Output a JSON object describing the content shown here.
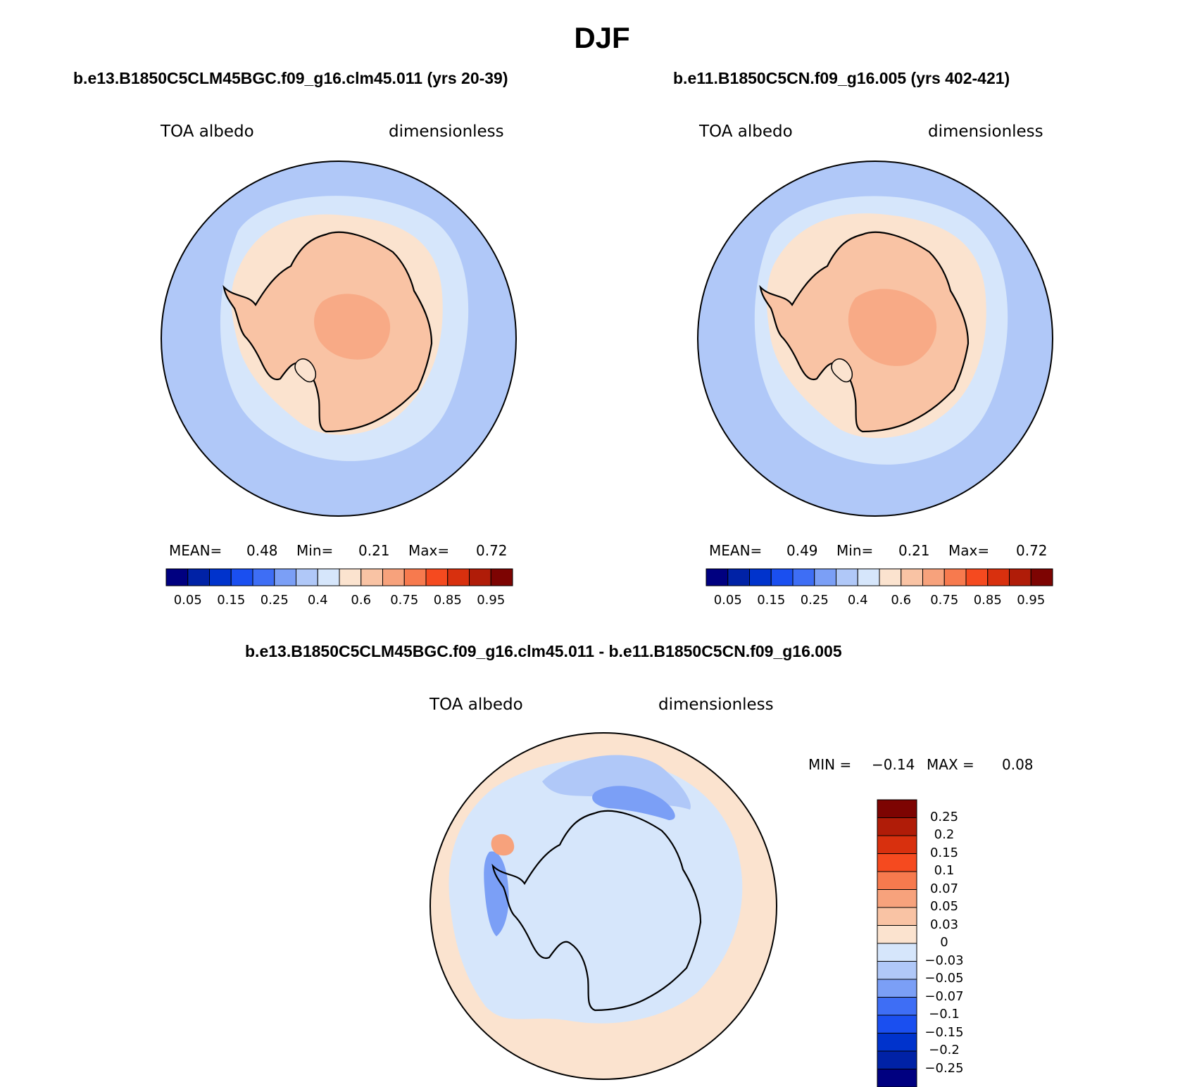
{
  "title": "DJF",
  "panels": [
    {
      "run_title": "b.e13.B1850C5CLM45BGC.f09_g16.clm45.011 (yrs 20-39)",
      "variable": "TOA albedo",
      "units": "dimensionless",
      "stats": {
        "mean_label": "MEAN=",
        "mean": "0.48",
        "min_label": "Min=",
        "min": "0.21",
        "max_label": "Max=",
        "max": "0.72"
      }
    },
    {
      "run_title": "b.e11.B1850C5CN.f09_g16.005 (yrs 402-421)",
      "variable": "TOA albedo",
      "units": "dimensionless",
      "stats": {
        "mean_label": "MEAN=",
        "mean": "0.49",
        "min_label": "Min=",
        "min": "0.21",
        "max_label": "Max=",
        "max": "0.72"
      }
    }
  ],
  "abs_colorbar": {
    "colors": [
      "#000080",
      "#0022a6",
      "#0033cc",
      "#1a4ff0",
      "#3e6ef5",
      "#7b9ff6",
      "#b0c8f8",
      "#d6e6fb",
      "#fbe3cf",
      "#f9c3a4",
      "#f7a27c",
      "#f77a4e",
      "#f54a1f",
      "#d8300e",
      "#b01c08",
      "#7d0402"
    ],
    "labels": [
      "0.05",
      "0.15",
      "0.25",
      "0.4",
      "0.6",
      "0.75",
      "0.85",
      "0.95"
    ]
  },
  "diff_panel": {
    "title": "b.e13.B1850C5CLM45BGC.f09_g16.clm45.011 - b.e11.B1850C5CN.f09_g16.005",
    "variable": "TOA albedo",
    "units": "dimensionless",
    "minmax": {
      "min_label": "MIN =",
      "min": "−0.14",
      "max_label": "MAX =",
      "max": "0.08"
    },
    "colorbar": {
      "colors_top_to_bottom": [
        "#7d0402",
        "#b01c08",
        "#d8300e",
        "#f54a1f",
        "#f77a4e",
        "#f7a27c",
        "#f9c3a4",
        "#fbe3cf",
        "#d6e6fb",
        "#b0c8f8",
        "#7b9ff6",
        "#3e6ef5",
        "#1a4ff0",
        "#0033cc",
        "#0022a6",
        "#000080"
      ],
      "labels": [
        "0.25",
        "0.2",
        "0.15",
        "0.1",
        "0.07",
        "0.05",
        "0.03",
        "0",
        "−0.03",
        "−0.05",
        "−0.07",
        "−0.1",
        "−0.15",
        "−0.2",
        "−0.25"
      ]
    }
  }
}
